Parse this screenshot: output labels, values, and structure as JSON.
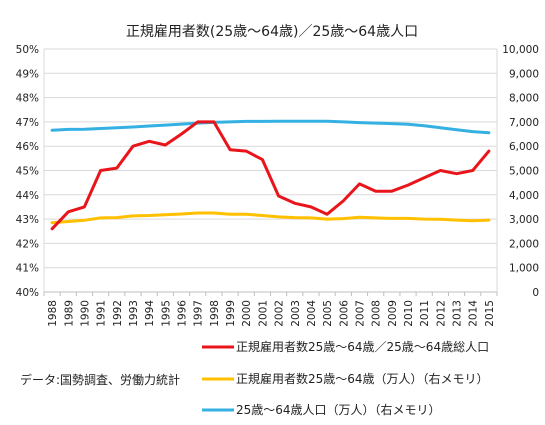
{
  "chart_data": {
    "type": "line",
    "title": "正規雇用者数(25歳～64歳)／25歳～64歳人口",
    "source_note": "データ:国勢調査、労働力統計",
    "x": [
      "1988",
      "1989",
      "1990",
      "1991",
      "1992",
      "1993",
      "1994",
      "1995",
      "1996",
      "1997",
      "1998",
      "1999",
      "2000",
      "2001",
      "2002",
      "2003",
      "2004",
      "2005",
      "2006",
      "2007",
      "2008",
      "2009",
      "2010",
      "2011",
      "2012",
      "2013",
      "2014",
      "2015"
    ],
    "y_left": {
      "ticks": [
        "40%",
        "41%",
        "42%",
        "43%",
        "44%",
        "45%",
        "46%",
        "47%",
        "48%",
        "49%",
        "50%"
      ],
      "range": [
        40,
        50
      ]
    },
    "y_right": {
      "ticks": [
        "0",
        "1,000",
        "2,000",
        "3,000",
        "4,000",
        "5,000",
        "6,000",
        "7,000",
        "8,000",
        "9,000",
        "10,000"
      ],
      "range": [
        0,
        10000
      ]
    },
    "grid": true,
    "legend_position": "bottom",
    "series": [
      {
        "name": "正規雇用者数25歳～64歳／25歳～64歳総人口",
        "axis": "left",
        "color": "#e8151b",
        "values": [
          42.6,
          43.3,
          43.5,
          45.0,
          45.1,
          46.0,
          46.2,
          46.05,
          46.5,
          47.0,
          47.0,
          45.85,
          45.8,
          45.45,
          43.95,
          43.65,
          43.5,
          43.2,
          43.75,
          44.45,
          44.15,
          44.15,
          44.4,
          44.7,
          45.0,
          44.87,
          45.0,
          45.8
        ]
      },
      {
        "name": "正規雇用者数25歳～64歳（万人）（右メモリ）",
        "axis": "right",
        "color": "#ffc000",
        "values": [
          2850,
          2900,
          2950,
          3050,
          3060,
          3130,
          3150,
          3180,
          3210,
          3250,
          3250,
          3200,
          3200,
          3150,
          3090,
          3060,
          3050,
          3000,
          3020,
          3080,
          3050,
          3030,
          3030,
          3000,
          2990,
          2960,
          2930,
          2960
        ]
      },
      {
        "name": "25歳～64歳人口（万人）（右メモリ）",
        "axis": "right",
        "color": "#35b0e3",
        "values": [
          6660,
          6690,
          6700,
          6730,
          6760,
          6790,
          6830,
          6870,
          6910,
          6950,
          6980,
          7000,
          7020,
          7020,
          7030,
          7030,
          7030,
          7030,
          7000,
          6970,
          6950,
          6930,
          6900,
          6840,
          6760,
          6680,
          6600,
          6550
        ]
      }
    ]
  }
}
